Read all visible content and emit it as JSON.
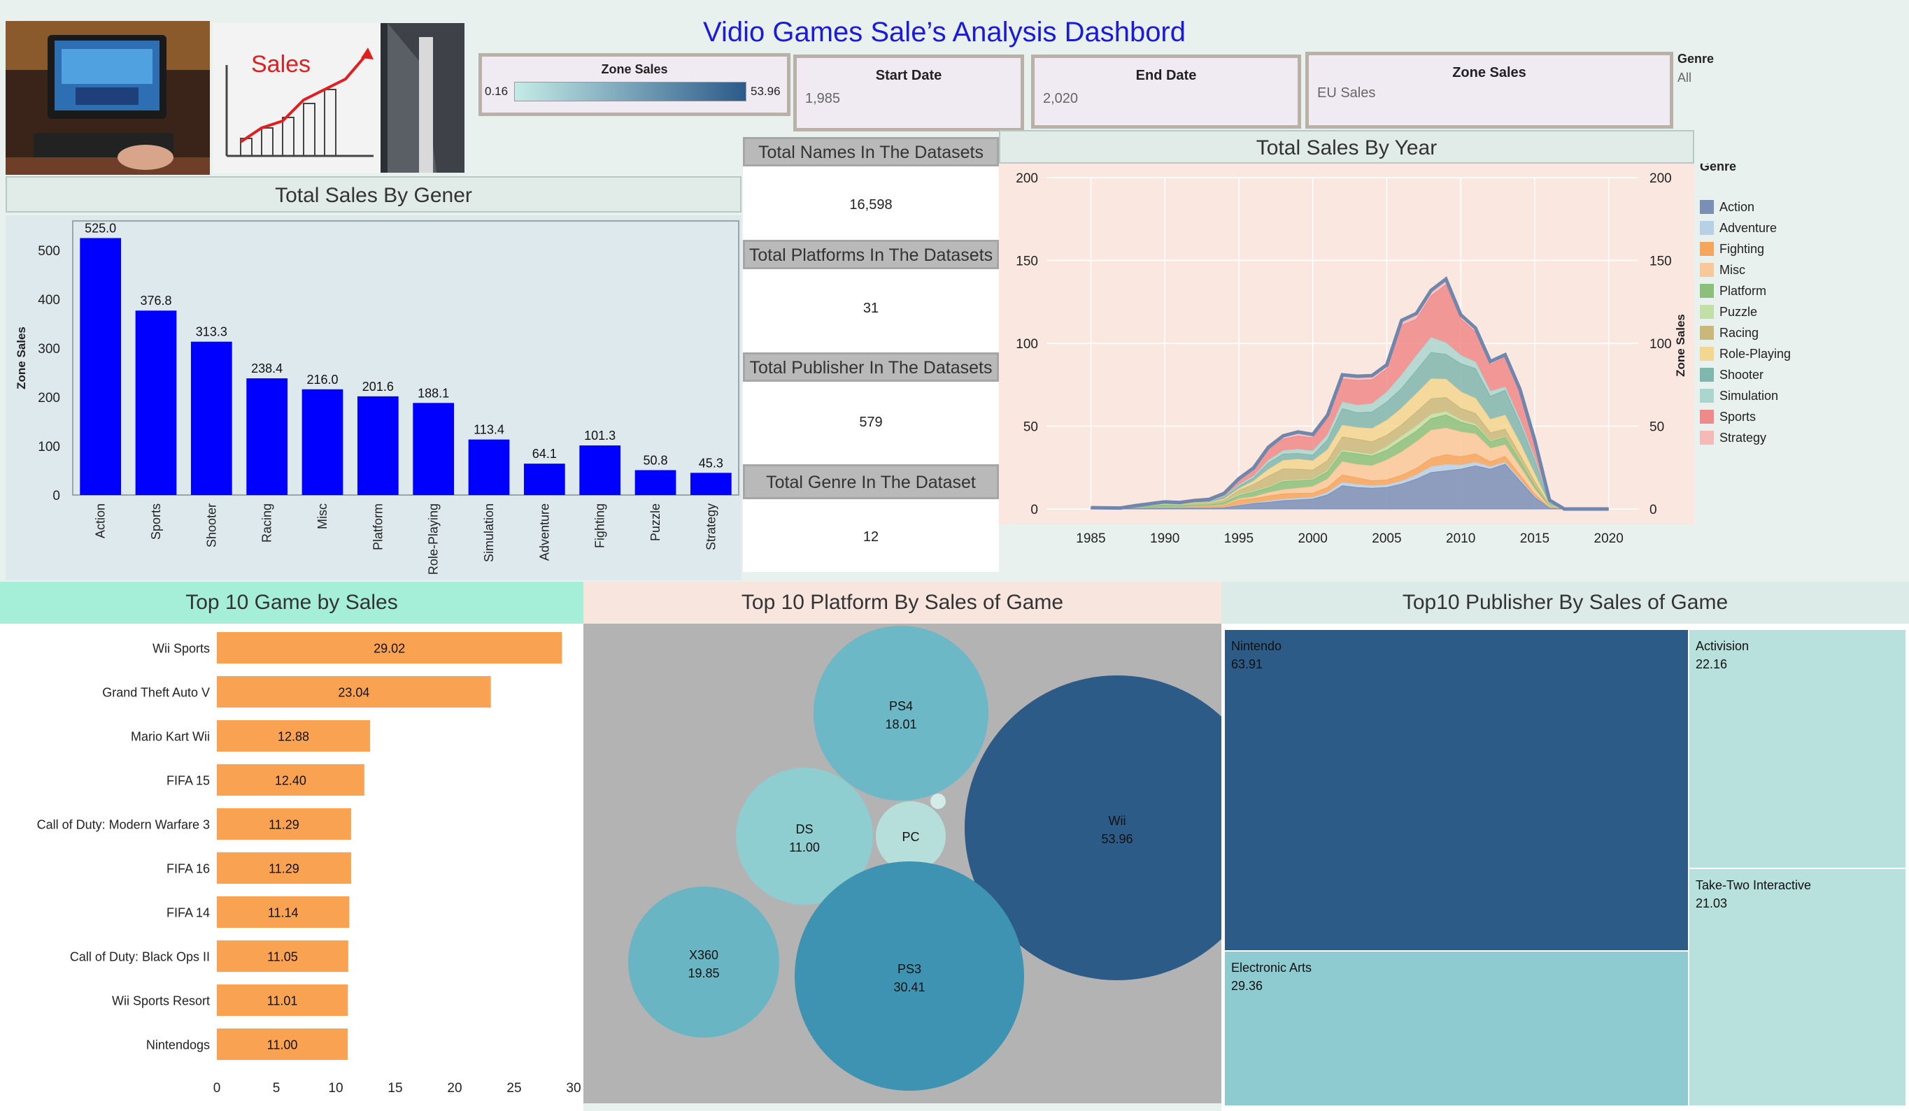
{
  "header": {
    "title": "Vidio Games Sale’s Analysis Dashbord"
  },
  "images": {
    "gaming_photo": "gaming-setup-photo",
    "sales_photo": "sales-chart-photo",
    "sales_word": "Sales"
  },
  "filters": {
    "zone_sales_legend": {
      "title": "Zone Sales",
      "min": "0.16",
      "max": "53.96"
    },
    "start_date": {
      "title": "Start Date",
      "value": "1,985"
    },
    "end_date": {
      "title": "End Date",
      "value": "2,020"
    },
    "zone_sales": {
      "title": "Zone Sales",
      "value": "EU Sales"
    },
    "genre": {
      "title": "Genre",
      "value": "All"
    }
  },
  "kpis": [
    {
      "label": "Total Names In The Datasets",
      "value": "16,598"
    },
    {
      "label": "Total Platforms In The Datasets",
      "value": "31"
    },
    {
      "label": "Total Publisher In The Datasets",
      "value": "579"
    },
    {
      "label": "Total Genre In The Dataset",
      "value": "12"
    }
  ],
  "colors": {
    "accent_title": "#1a1adb",
    "bar_blue": "#0000ff",
    "bar_orange": "#f9a352"
  },
  "chart_data": [
    {
      "type": "bar",
      "title": "Total Sales By Gener",
      "ylabel": "Zone Sales",
      "yticks": [
        0,
        100,
        200,
        300,
        400,
        500
      ],
      "ylim": [
        0,
        560
      ],
      "categories": [
        "Action",
        "Sports",
        "Shooter",
        "Racing",
        "Misc",
        "Platform",
        "Role-Playing",
        "Simulation",
        "Adventure",
        "Fighting",
        "Puzzle",
        "Strategy"
      ],
      "values": [
        525.0,
        376.8,
        313.3,
        238.4,
        216.0,
        201.6,
        188.1,
        113.4,
        64.1,
        101.3,
        50.8,
        45.3
      ],
      "labels": [
        "525.0",
        "376.8",
        "313.3",
        "238.4",
        "216.0",
        "201.6",
        "188.1",
        "113.4",
        "64.1",
        "101.3",
        "50.8",
        "45.3"
      ],
      "color": "#0000ff"
    },
    {
      "type": "area",
      "title": "Total Sales By Year",
      "ylabel": "Zone Sales",
      "x": [
        1985,
        1986,
        1987,
        1988,
        1989,
        1990,
        1991,
        1992,
        1993,
        1994,
        1995,
        1996,
        1997,
        1998,
        1999,
        2000,
        2001,
        2002,
        2003,
        2004,
        2005,
        2006,
        2007,
        2008,
        2009,
        2010,
        2011,
        2012,
        2013,
        2014,
        2015,
        2016,
        2017,
        2018,
        2019,
        2020
      ],
      "xticks": [
        1985,
        1990,
        1995,
        2000,
        2005,
        2010,
        2015,
        2020
      ],
      "yticks": [
        0,
        50,
        100,
        150,
        200
      ],
      "ylim": [
        0,
        200
      ],
      "xlim": [
        1982,
        2022
      ],
      "grid": true,
      "legend": {
        "title": "Genre",
        "position": "right"
      },
      "series": [
        {
          "name": "Action",
          "color": "#7a8fb6",
          "values": [
            0.1,
            0.1,
            0.1,
            0.3,
            0.4,
            0.5,
            0.4,
            0.5,
            0.4,
            0.7,
            2.0,
            3.3,
            4.0,
            5.0,
            5.5,
            6.0,
            8.5,
            14.0,
            13.0,
            12.5,
            13.0,
            15.0,
            18.0,
            22.0,
            23.0,
            24.0,
            26.0,
            24.0,
            27.0,
            17.0,
            7.0,
            0.5,
            0,
            0,
            0,
            0
          ]
        },
        {
          "name": "Adventure",
          "color": "#b8d0e6",
          "values": [
            0,
            0,
            0,
            0,
            0,
            0.1,
            0.1,
            0.1,
            0.1,
            0.2,
            0.3,
            0.5,
            0.8,
            0.9,
            1.0,
            1.0,
            1.5,
            2.0,
            1.8,
            1.5,
            1.5,
            1.8,
            2.5,
            3.5,
            3.8,
            2.5,
            2.2,
            1.5,
            1.2,
            1.0,
            0.4,
            0.1,
            0,
            0,
            0,
            0
          ]
        },
        {
          "name": "Fighting",
          "color": "#f6a55c",
          "values": [
            0,
            0,
            0,
            0.1,
            0.1,
            0.2,
            0.3,
            0.6,
            0.8,
            1.0,
            3.0,
            2.5,
            3.0,
            3.2,
            3.0,
            2.5,
            3.0,
            4.5,
            4.0,
            3.0,
            3.0,
            3.5,
            4.0,
            5.0,
            6.0,
            5.0,
            5.0,
            3.0,
            3.5,
            2.5,
            1.5,
            0.2,
            0,
            0,
            0,
            0
          ]
        },
        {
          "name": "Misc",
          "color": "#f9c89a",
          "values": [
            0,
            0,
            0,
            0.1,
            0.1,
            0.1,
            0.2,
            0.3,
            0.4,
            0.5,
            0.8,
            1.0,
            2.0,
            2.5,
            3.0,
            4.0,
            5.0,
            8.0,
            8.0,
            9.0,
            12.0,
            14.0,
            16.0,
            17.0,
            16.0,
            15.0,
            12.0,
            8.0,
            7.0,
            5.0,
            3.0,
            0.4,
            0,
            0,
            0,
            0
          ]
        },
        {
          "name": "Platform",
          "color": "#8cbf7a",
          "values": [
            0.1,
            0.2,
            0.2,
            0.8,
            1.2,
            1.5,
            1.0,
            1.0,
            0.8,
            1.5,
            2.0,
            3.0,
            3.0,
            5.0,
            4.5,
            4.0,
            4.5,
            6.0,
            6.5,
            6.0,
            6.0,
            7.0,
            6.5,
            7.0,
            8.0,
            6.0,
            5.0,
            4.0,
            4.5,
            3.5,
            2.0,
            0.3,
            0,
            0,
            0,
            0
          ]
        },
        {
          "name": "Puzzle",
          "color": "#c2e0a6",
          "values": [
            0,
            0,
            0,
            0.1,
            0.3,
            0.5,
            0.2,
            0.3,
            0.2,
            0.3,
            0.6,
            0.5,
            0.5,
            0.6,
            0.5,
            0.5,
            0.7,
            1.0,
            0.8,
            1.0,
            2.0,
            2.5,
            3.0,
            2.5,
            2.0,
            1.2,
            1.0,
            0.5,
            0.4,
            0.3,
            0.2,
            0,
            0,
            0,
            0,
            0
          ]
        },
        {
          "name": "Racing",
          "color": "#c9b879",
          "values": [
            0,
            0,
            0,
            0.1,
            0.2,
            0.3,
            0.3,
            0.5,
            0.6,
            1.0,
            2.5,
            4.0,
            6.5,
            7.0,
            6.5,
            5.5,
            6.0,
            8.0,
            8.0,
            7.5,
            7.0,
            7.0,
            8.5,
            9.5,
            8.5,
            7.0,
            6.5,
            5.0,
            4.5,
            3.5,
            2.5,
            0.4,
            0,
            0,
            0,
            0
          ]
        },
        {
          "name": "Role-Playing",
          "color": "#f3d68f",
          "values": [
            0,
            0,
            0,
            0.1,
            0.2,
            0.3,
            0.3,
            0.5,
            0.5,
            0.8,
            1.0,
            2.0,
            4.0,
            5.0,
            6.0,
            5.5,
            6.5,
            7.0,
            7.0,
            8.0,
            9.0,
            10.0,
            11.0,
            12.0,
            11.0,
            10.0,
            9.0,
            8.0,
            8.5,
            7.0,
            4.5,
            0.5,
            0,
            0,
            0,
            0
          ]
        },
        {
          "name": "Shooter",
          "color": "#7fb6ae",
          "values": [
            0.5,
            0.3,
            0.2,
            0.2,
            0.3,
            0.3,
            0.3,
            0.3,
            0.5,
            1.0,
            1.5,
            2.0,
            4.0,
            4.0,
            3.5,
            3.5,
            6.0,
            10.0,
            9.0,
            10.0,
            11.0,
            12.0,
            14.0,
            16.0,
            15.0,
            17.0,
            18.0,
            14.0,
            15.0,
            12.0,
            8.0,
            1.0,
            0,
            0,
            0,
            0
          ]
        },
        {
          "name": "Simulation",
          "color": "#abd6cf",
          "values": [
            0,
            0,
            0,
            0,
            0.1,
            0.1,
            0.2,
            0.2,
            0.3,
            0.4,
            0.8,
            1.0,
            1.5,
            2.0,
            2.5,
            2.5,
            3.0,
            4.0,
            4.5,
            5.0,
            6.0,
            8.0,
            9.0,
            9.0,
            7.0,
            5.0,
            4.0,
            3.0,
            2.0,
            2.0,
            1.5,
            0.3,
            0,
            0,
            0,
            0
          ]
        },
        {
          "name": "Sports",
          "color": "#ee8a8a",
          "values": [
            0.1,
            0.1,
            0.1,
            0.2,
            0.2,
            0.3,
            0.4,
            0.5,
            0.8,
            1.5,
            3.0,
            4.0,
            6.5,
            7.0,
            8.0,
            8.0,
            10.0,
            14.0,
            15.0,
            14.5,
            14.0,
            30.0,
            22.0,
            25.0,
            35.0,
            22.0,
            18.0,
            16.0,
            18.0,
            17.0,
            10.0,
            1.5,
            0,
            0,
            0,
            0
          ]
        },
        {
          "name": "Strategy",
          "color": "#f7b8b8",
          "values": [
            0,
            0,
            0,
            0,
            0.1,
            0.1,
            0.2,
            0.3,
            0.4,
            0.5,
            0.8,
            1.0,
            1.5,
            2.0,
            2.5,
            2.0,
            2.0,
            2.5,
            2.5,
            2.5,
            2.5,
            3.0,
            3.5,
            3.5,
            3.5,
            2.5,
            2.5,
            2.0,
            1.5,
            1.5,
            1.0,
            0.2,
            0,
            0,
            0,
            0
          ]
        }
      ]
    },
    {
      "type": "bar",
      "title": "Top 10 Game by Sales",
      "orientation": "horizontal",
      "categories": [
        "Wii Sports",
        "Grand Theft Auto V",
        "Mario Kart Wii",
        "FIFA 15",
        "Call of Duty: Modern Warfare 3",
        "FIFA 16",
        "FIFA 14",
        "Call of Duty: Black Ops II",
        "Wii Sports Resort",
        "Nintendogs"
      ],
      "values": [
        29.02,
        23.04,
        12.88,
        12.4,
        11.29,
        11.29,
        11.14,
        11.05,
        11.01,
        11.0
      ],
      "labels": [
        "29.02",
        "23.04",
        "12.88",
        "12.40",
        "11.29",
        "11.29",
        "11.14",
        "11.05",
        "11.01",
        "11.00"
      ],
      "xticks": [
        0,
        5,
        10,
        15,
        20,
        25,
        30
      ],
      "xlim": [
        0,
        30
      ],
      "color": "#f9a352"
    },
    {
      "type": "bubble",
      "title": "Top 10 Platform By  Sales of Game",
      "items": [
        {
          "name": "PS4",
          "value": 18.01,
          "label": "18.01",
          "color": "#6db8c6"
        },
        {
          "name": "DS",
          "value": 11.0,
          "label": "11.00",
          "color": "#8ecdd0"
        },
        {
          "name": "PC",
          "value": 3.5,
          "label": "",
          "color": "#b6dfdb"
        },
        {
          "name": "Wii",
          "value": 53.96,
          "label": "53.96",
          "color": "#2d5b87"
        },
        {
          "name": "X360",
          "value": 19.85,
          "label": "19.85",
          "color": "#6ab5c4"
        },
        {
          "name": "PS3",
          "value": 30.41,
          "label": "30.41",
          "color": "#3d93b1"
        },
        {
          "name": "",
          "value": 0.16,
          "label": "",
          "color": "#d3ece8"
        }
      ]
    },
    {
      "type": "treemap",
      "title": "Top10 Publisher By  Sales of Game",
      "items": [
        {
          "name": "Nintendo",
          "value": 63.91,
          "label": "63.91",
          "color": "#2d5b87",
          "text_color": "#111111"
        },
        {
          "name": "Electronic Arts",
          "value": 29.36,
          "label": "29.36",
          "color": "#8ecbd0",
          "text_color": "#111111"
        },
        {
          "name": "Activision",
          "value": 22.16,
          "label": "22.16",
          "color": "#b8e0dc",
          "text_color": "#111111"
        },
        {
          "name": "Take-Two Interactive",
          "value": 21.03,
          "label": "21.03",
          "color": "#b8e0dc",
          "text_color": "#111111"
        }
      ]
    }
  ]
}
